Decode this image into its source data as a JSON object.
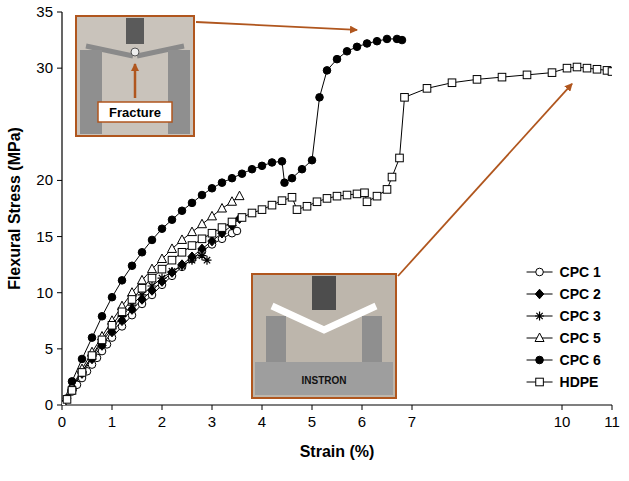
{
  "chart_data": {
    "type": "line",
    "x_label": "Strain (%)",
    "y_label": "Flexural Stress (MPa)",
    "xlim": [
      0,
      11
    ],
    "ylim": [
      0,
      35
    ],
    "xticks": [
      0,
      1,
      2,
      3,
      4,
      5,
      6,
      7,
      10,
      11
    ],
    "yticks": [
      0,
      5,
      10,
      15,
      20,
      30,
      35
    ],
    "grid": false,
    "legend": "lower right",
    "annotations": [
      "Fracture",
      "INSTRON"
    ],
    "series": [
      {
        "name": "CPC 1",
        "color": "#000000",
        "marker": "open-circle",
        "x": [
          0,
          0.1,
          0.2,
          0.3,
          0.4,
          0.5,
          0.6,
          0.7,
          0.8,
          0.9,
          1.0,
          1.2,
          1.4,
          1.6,
          1.8,
          2.0,
          2.2,
          2.4,
          2.6,
          2.8,
          3.0,
          3.2,
          3.4,
          3.5
        ],
        "values": [
          0,
          0.6,
          1.2,
          1.8,
          2.4,
          3.0,
          3.6,
          4.2,
          4.8,
          5.4,
          6.0,
          7.0,
          8.0,
          9.0,
          9.8,
          10.7,
          11.5,
          12.3,
          13.0,
          13.7,
          14.3,
          14.8,
          15.3,
          15.5
        ]
      },
      {
        "name": "CPC 2",
        "color": "#000000",
        "marker": "filled-diamond",
        "x": [
          0,
          0.2,
          0.4,
          0.6,
          0.8,
          1.0,
          1.2,
          1.4,
          1.6,
          1.8,
          2.0,
          2.2,
          2.4,
          2.6,
          2.8,
          3.0,
          3.2,
          3.4,
          3.55
        ],
        "values": [
          0,
          1.4,
          2.8,
          4.1,
          5.3,
          6.5,
          7.5,
          8.5,
          9.4,
          10.2,
          11.0,
          11.8,
          12.5,
          13.2,
          13.9,
          14.6,
          15.3,
          16.0,
          16.6
        ]
      },
      {
        "name": "CPC 3",
        "color": "#000000",
        "marker": "asterisk",
        "x": [
          0,
          0.2,
          0.4,
          0.6,
          0.8,
          1.0,
          1.2,
          1.4,
          1.6,
          1.8,
          2.0,
          2.2,
          2.4,
          2.6,
          2.8,
          2.9
        ],
        "values": [
          0,
          1.5,
          3.0,
          4.3,
          5.6,
          6.8,
          7.9,
          8.9,
          9.8,
          10.6,
          11.3,
          11.9,
          12.4,
          12.9,
          13.3,
          12.9
        ]
      },
      {
        "name": "CPC 5",
        "color": "#000000",
        "marker": "open-triangle",
        "x": [
          0,
          0.2,
          0.4,
          0.6,
          0.8,
          1.0,
          1.2,
          1.4,
          1.6,
          1.8,
          2.0,
          2.2,
          2.4,
          2.6,
          2.8,
          3.0,
          3.2,
          3.4,
          3.55
        ],
        "values": [
          0,
          1.6,
          3.2,
          4.7,
          6.1,
          7.5,
          8.8,
          10.0,
          11.1,
          12.1,
          13.0,
          13.9,
          14.7,
          15.4,
          16.1,
          16.8,
          17.5,
          18.1,
          18.6
        ]
      },
      {
        "name": "CPC 6",
        "color": "#000000",
        "marker": "filled-circle",
        "x": [
          0,
          0.2,
          0.4,
          0.6,
          0.8,
          1.0,
          1.2,
          1.4,
          1.6,
          1.8,
          2.0,
          2.2,
          2.4,
          2.6,
          2.8,
          3.0,
          3.2,
          3.4,
          3.6,
          3.8,
          4.0,
          4.2,
          4.4,
          4.45,
          4.6,
          4.8,
          5.0,
          5.15,
          5.3,
          5.5,
          5.7,
          5.9,
          6.1,
          6.3,
          6.5,
          6.7,
          6.8
        ],
        "values": [
          0,
          2.1,
          4.1,
          6.0,
          7.9,
          9.6,
          11.1,
          12.4,
          13.6,
          14.7,
          15.7,
          16.5,
          17.3,
          18.0,
          18.7,
          19.3,
          19.8,
          20.2,
          20.6,
          21.0,
          21.3,
          21.6,
          21.7,
          19.8,
          20.2,
          21.0,
          21.8,
          27.4,
          29.8,
          30.8,
          31.5,
          31.9,
          32.2,
          32.4,
          32.6,
          32.6,
          32.5
        ]
      },
      {
        "name": "HDPE",
        "color": "#000000",
        "marker": "open-square",
        "x": [
          0,
          0.1,
          0.2,
          0.4,
          0.6,
          0.8,
          1.0,
          1.2,
          1.4,
          1.6,
          1.8,
          2.0,
          2.2,
          2.4,
          2.6,
          2.8,
          3.0,
          3.2,
          3.4,
          3.6,
          3.8,
          4.0,
          4.2,
          4.4,
          4.6,
          4.7,
          4.9,
          5.1,
          5.3,
          5.5,
          5.7,
          5.9,
          6.05,
          6.1,
          6.3,
          6.5,
          6.6,
          6.75,
          6.85,
          7.3,
          7.8,
          8.3,
          8.8,
          9.3,
          9.8,
          10.1,
          10.3,
          10.5,
          10.7,
          10.9,
          11.0
        ],
        "values": [
          0,
          0.5,
          1.3,
          2.9,
          4.4,
          5.8,
          7.1,
          8.3,
          9.4,
          10.4,
          11.3,
          12.1,
          12.9,
          13.6,
          14.2,
          14.8,
          15.3,
          15.8,
          16.3,
          16.7,
          17.1,
          17.4,
          17.8,
          18.2,
          18.5,
          17.4,
          17.7,
          18.1,
          18.4,
          18.6,
          18.7,
          18.8,
          18.9,
          18.1,
          18.6,
          19.2,
          20.3,
          22.0,
          27.4,
          28.2,
          28.7,
          29.0,
          29.2,
          29.4,
          29.6,
          30.0,
          30.1,
          30.0,
          29.9,
          29.8,
          29.7
        ]
      }
    ]
  }
}
